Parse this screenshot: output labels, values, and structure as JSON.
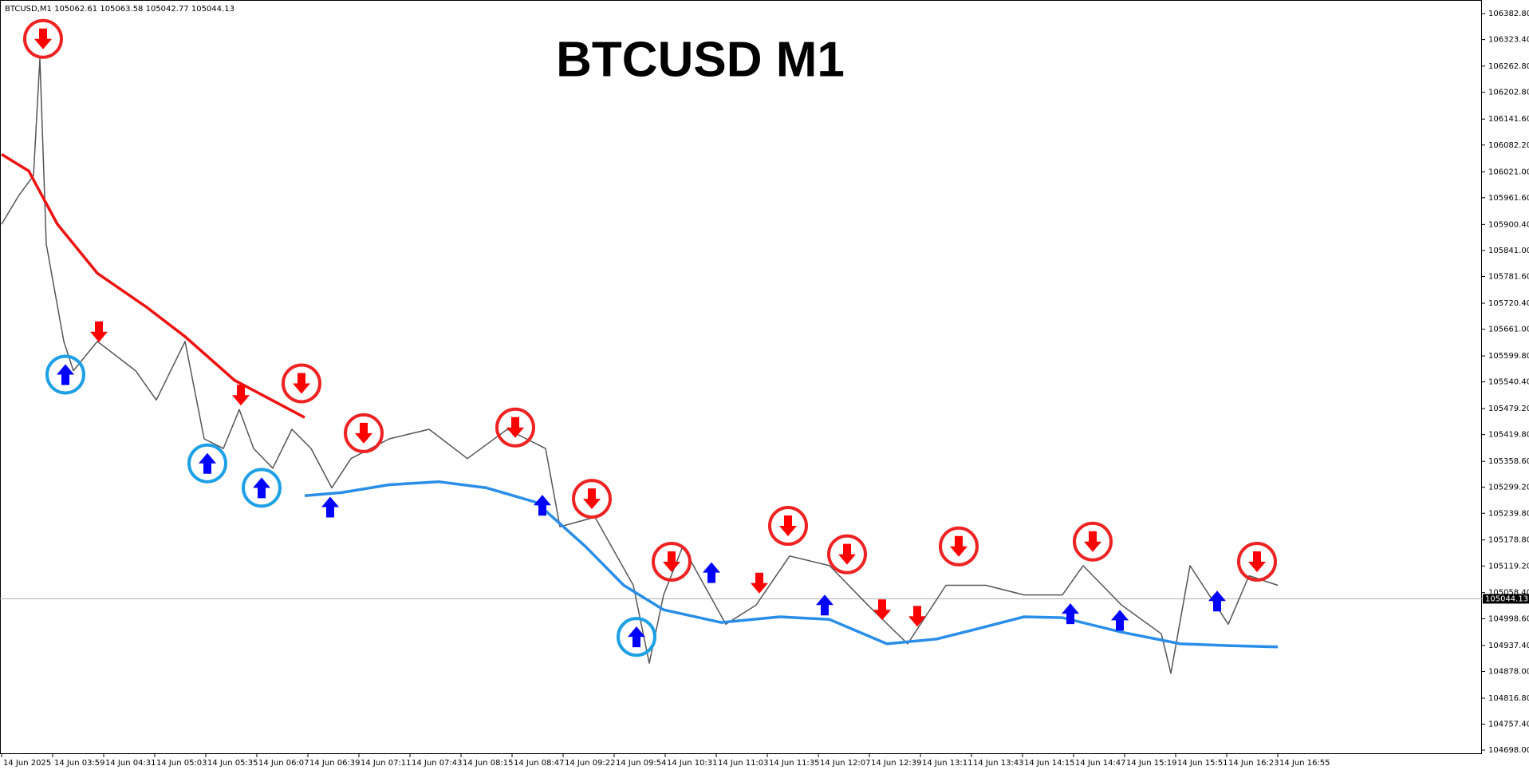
{
  "chart_data": {
    "type": "line",
    "info": "BTCUSD,M1  105062.61 105063.58 105042.77 105044.13",
    "title": "BTCUSD M1",
    "xlim": [
      -1,
      928
    ],
    "ylim": [
      104689,
      106414
    ],
    "last_price": 105044.13,
    "yticks": [
      {
        "value": 106382.8,
        "label": "106382.80"
      },
      {
        "value": 106323.4,
        "label": "106323.40"
      },
      {
        "value": 106262.8,
        "label": "106262.80"
      },
      {
        "value": 106202.8,
        "label": "106202.80"
      },
      {
        "value": 106141.6,
        "label": "106141.60"
      },
      {
        "value": 106082.2,
        "label": "106082.20"
      },
      {
        "value": 106021,
        "label": "106021.00"
      },
      {
        "value": 105961.6,
        "label": "105961.60"
      },
      {
        "value": 105900.4,
        "label": "105900.40"
      },
      {
        "value": 105841,
        "label": "105841.00"
      },
      {
        "value": 105781.6,
        "label": "105781.60"
      },
      {
        "value": 105720.4,
        "label": "105720.40"
      },
      {
        "value": 105661,
        "label": "105661.00"
      },
      {
        "value": 105599.8,
        "label": "105599.80"
      },
      {
        "value": 105540.4,
        "label": "105540.40"
      },
      {
        "value": 105479.2,
        "label": "105479.20"
      },
      {
        "value": 105419.8,
        "label": "105419.80"
      },
      {
        "value": 105358.6,
        "label": "105358.60"
      },
      {
        "value": 105299.2,
        "label": "105299.20"
      },
      {
        "value": 105239.8,
        "label": "105239.80"
      },
      {
        "value": 105178.8,
        "label": "105178.80"
      },
      {
        "value": 105119.2,
        "label": "105119.20"
      },
      {
        "value": 105058.4,
        "label": "105058.40"
      },
      {
        "value": 104998.6,
        "label": "104998.60"
      },
      {
        "value": 104937.4,
        "label": "104937.40"
      },
      {
        "value": 104878,
        "label": "104878.00"
      },
      {
        "value": 104816.8,
        "label": "104816.80"
      },
      {
        "value": 104757.4,
        "label": "104757.40"
      },
      {
        "value": 104698,
        "label": "104698.00"
      }
    ],
    "xticks": [
      {
        "value": 0,
        "label": "14 Jun 2025"
      },
      {
        "value": 32,
        "label": "14 Jun 03:59"
      },
      {
        "value": 64,
        "label": "14 Jun 04:31"
      },
      {
        "value": 96,
        "label": "14 Jun 05:03"
      },
      {
        "value": 128,
        "label": "14 Jun 05:35"
      },
      {
        "value": 160,
        "label": "14 Jun 06:07"
      },
      {
        "value": 192,
        "label": "14 Jun 06:39"
      },
      {
        "value": 224,
        "label": "14 Jun 07:11"
      },
      {
        "value": 256,
        "label": "14 Jun 07:43"
      },
      {
        "value": 288,
        "label": "14 Jun 08:15"
      },
      {
        "value": 320,
        "label": "14 Jun 08:47"
      },
      {
        "value": 352,
        "label": "14 Jun 09:22"
      },
      {
        "value": 384,
        "label": "14 Jun 09:54"
      },
      {
        "value": 416,
        "label": "14 Jun 10:31"
      },
      {
        "value": 448,
        "label": "14 Jun 11:03"
      },
      {
        "value": 480,
        "label": "14 Jun 11:35"
      },
      {
        "value": 512,
        "label": "14 Jun 12:07"
      },
      {
        "value": 544,
        "label": "14 Jun 12:39"
      },
      {
        "value": 576,
        "label": "14 Jun 13:11"
      },
      {
        "value": 608,
        "label": "14 Jun 13:43"
      },
      {
        "value": 640,
        "label": "14 Jun 14:15"
      },
      {
        "value": 672,
        "label": "14 Jun 14:47"
      },
      {
        "value": 704,
        "label": "14 Jun 15:19"
      },
      {
        "value": 736,
        "label": "14 Jun 15:51"
      },
      {
        "value": 768,
        "label": "14 Jun 16:23"
      },
      {
        "value": 800,
        "label": "14 Jun 16:55"
      }
    ],
    "series": [
      {
        "color": "#555555",
        "width": 1.5,
        "x": [
          0,
          11,
          20,
          24,
          28,
          39,
          45,
          60,
          84,
          97,
          115,
          127,
          139,
          149,
          158,
          170,
          182,
          194,
          207,
          219,
          243,
          268,
          292,
          317,
          341,
          350,
          372,
          396,
          406,
          415,
          427,
          454,
          473,
          494,
          519,
          543,
          568,
          592,
          617,
          641,
          665,
          678,
          702,
          727,
          733,
          745,
          769,
          782,
          800
        ],
        "values": [
          105901,
          105968,
          106012,
          106280,
          105856,
          105633,
          105566,
          105633,
          105566,
          105499,
          105633,
          105410,
          105388,
          105477,
          105388,
          105343,
          105432,
          105388,
          105298,
          105365,
          105410,
          105432,
          105365,
          105432,
          105388,
          105209,
          105231,
          105075,
          104897,
          105053,
          105164,
          104986,
          105030,
          105142,
          105120,
          105030,
          104941,
          105075,
          105075,
          105053,
          105053,
          105120,
          105030,
          104964,
          104874,
          105120,
          104986,
          105097,
          105075
        ]
      },
      {
        "color": "#ee1111",
        "width": 3.5,
        "x": [
          0,
          17,
          35,
          60,
          91,
          115,
          146,
          190
        ],
        "values": [
          106061,
          106023,
          105901,
          105789,
          105711,
          105644,
          105544,
          105459
        ]
      },
      {
        "color": "#2a8ee8",
        "width": 3.5,
        "x": [
          190,
          213,
          243,
          274,
          304,
          335,
          366,
          390,
          415,
          451,
          488,
          519,
          555,
          586,
          610,
          641,
          665,
          702,
          739,
          769,
          800
        ],
        "values": [
          105280,
          105287,
          105305,
          105312,
          105298,
          105265,
          105164,
          105075,
          105019,
          104990,
          105003,
          104997,
          104941,
          104952,
          104974,
          105003,
          105001,
          104968,
          104941,
          104937,
          104934
        ]
      }
    ],
    "signals": [
      {
        "direction": "sell",
        "color": "#ff0000",
        "ring_color": "#ee2222",
        "x": [
          26,
          188,
          227,
          322,
          370,
          420,
          493,
          530,
          600,
          684,
          787,
          61,
          150,
          475,
          552,
          574
        ],
        "values": [
          106325,
          105537,
          105423,
          105436,
          105273,
          105129,
          105211,
          105146,
          105164,
          105175,
          105129,
          105655,
          105510,
          105080,
          105019,
          105004
        ],
        "circled": [
          true,
          true,
          true,
          true,
          true,
          true,
          true,
          true,
          true,
          true,
          true,
          false,
          false,
          false,
          false,
          false
        ]
      },
      {
        "direction": "buy",
        "color": "#0000ff",
        "ring_color": "#1ea0e6",
        "x": [
          40,
          129,
          163,
          398,
          206,
          339,
          445,
          516,
          670,
          701,
          762
        ],
        "values": [
          105557,
          105354,
          105298,
          104957,
          105254,
          105258,
          105104,
          105030,
          105010,
          104995,
          105039
        ],
        "circled": [
          true,
          true,
          true,
          true,
          false,
          false,
          false,
          false,
          false,
          false,
          false
        ]
      }
    ]
  }
}
